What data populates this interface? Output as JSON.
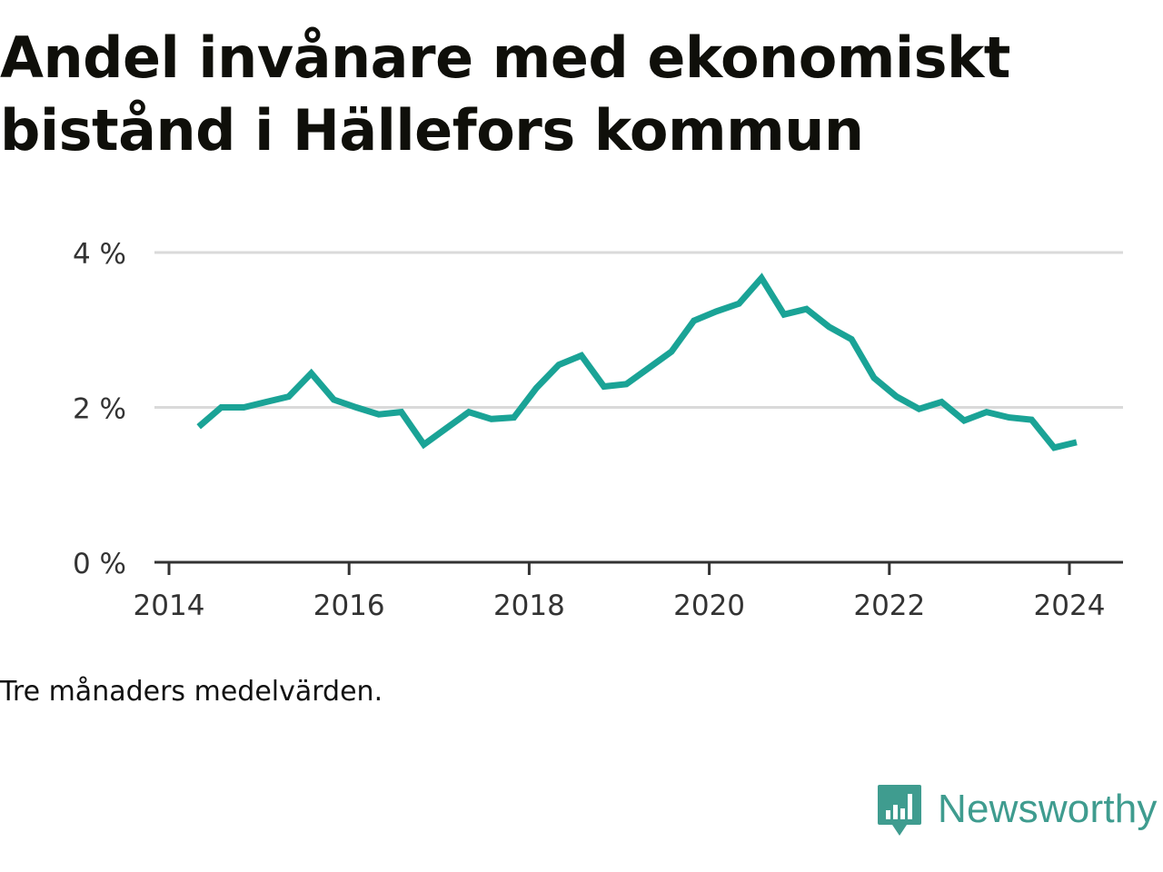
{
  "title": "Andel invånare med ekonomiskt bistånd i Hällefors kommun",
  "note": "Tre månaders medelvärden.",
  "brand": {
    "name": "Newsworthy",
    "icon": "newsworthy-logo-icon",
    "color": "#3f9c8f"
  },
  "chart_data": {
    "type": "line",
    "line_color": "#1aa396",
    "grid": true,
    "yticks": [
      "0 %",
      "2 %",
      "4 %"
    ],
    "ytick_values": [
      0,
      2,
      4
    ],
    "xticks": [
      "2014",
      "2016",
      "2018",
      "2020",
      "2022",
      "2024"
    ],
    "xtick_values": [
      2014,
      2016,
      2018,
      2020,
      2022,
      2024
    ],
    "xlim": [
      2014,
      2024.6
    ],
    "ylim": [
      0,
      4
    ],
    "series": [
      {
        "x": [
          2014.33,
          2014.58,
          2014.83,
          2015.08,
          2015.33,
          2015.58,
          2015.83,
          2016.08,
          2016.33,
          2016.58,
          2016.83,
          2017.08,
          2017.33,
          2017.58,
          2017.83,
          2018.08,
          2018.33,
          2018.58,
          2018.83,
          2019.08,
          2019.33,
          2019.58,
          2019.83,
          2020.08,
          2020.33,
          2020.58,
          2020.83,
          2021.08,
          2021.33,
          2021.58,
          2021.83,
          2022.08,
          2022.33,
          2022.58,
          2022.83,
          2023.08,
          2023.33,
          2023.58,
          2023.83,
          2024.08
        ],
        "y": [
          1.75,
          2.0,
          2.0,
          2.07,
          2.14,
          2.44,
          2.1,
          2.0,
          1.91,
          1.94,
          1.52,
          1.73,
          1.94,
          1.85,
          1.87,
          2.25,
          2.55,
          2.67,
          2.27,
          2.3,
          2.51,
          2.72,
          3.12,
          3.24,
          3.34,
          3.67,
          3.2,
          3.27,
          3.04,
          2.88,
          2.38,
          2.14,
          1.98,
          2.07,
          1.83,
          1.94,
          1.87,
          1.84,
          1.48,
          1.55
        ]
      }
    ]
  }
}
